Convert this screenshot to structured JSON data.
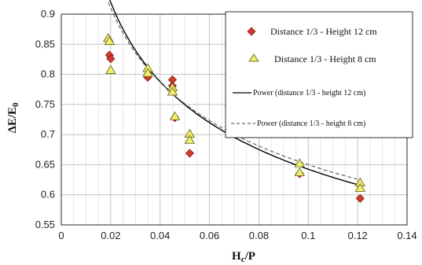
{
  "chart_data": {
    "type": "scatter",
    "xlabel_main": "H",
    "xlabel_sub": "c",
    "xlabel_rest": "/P",
    "ylabel_main": "ΔE/E",
    "ylabel_sub": "0",
    "xlim": [
      0,
      0.14
    ],
    "ylim": [
      0.55,
      0.9
    ],
    "x_ticks": [
      0,
      0.02,
      0.04,
      0.06,
      0.08,
      0.1,
      0.12,
      0.14
    ],
    "x_tick_labels": [
      "0",
      "0.02",
      "0.04",
      "0.06",
      "0.08",
      "0.1",
      "0.12",
      "0.14"
    ],
    "y_ticks": [
      0.55,
      0.6,
      0.65,
      0.7,
      0.75,
      0.8,
      0.85,
      0.9
    ],
    "y_tick_labels": [
      "0.55",
      "0.6",
      "0.65",
      "0.7",
      "0.75",
      "0.8",
      "0.85",
      "0.9"
    ],
    "x_minor_step": 0.005,
    "grid": "vertical minor and major, horizontal major",
    "legend_position": "top-right",
    "series": [
      {
        "name": "Distance 1/3 - Height 12 cm",
        "marker": "diamond",
        "color": "#d63a2f",
        "stroke": "#7a1a14",
        "points": [
          [
            0.019,
            0.857
          ],
          [
            0.0195,
            0.832
          ],
          [
            0.02,
            0.826
          ],
          [
            0.035,
            0.795
          ],
          [
            0.045,
            0.791
          ],
          [
            0.045,
            0.781
          ],
          [
            0.046,
            0.728
          ],
          [
            0.052,
            0.669
          ],
          [
            0.0965,
            0.635
          ],
          [
            0.121,
            0.594
          ]
        ]
      },
      {
        "name": "Distance 1/3 - Height 8 cm",
        "marker": "triangle",
        "color": "#f2ee6a",
        "stroke": "#5a5a1a",
        "points": [
          [
            0.019,
            0.861
          ],
          [
            0.0195,
            0.856
          ],
          [
            0.02,
            0.808
          ],
          [
            0.035,
            0.811
          ],
          [
            0.035,
            0.803
          ],
          [
            0.045,
            0.779
          ],
          [
            0.045,
            0.772
          ],
          [
            0.046,
            0.731
          ],
          [
            0.052,
            0.702
          ],
          [
            0.052,
            0.692
          ],
          [
            0.0965,
            0.653
          ],
          [
            0.0965,
            0.638
          ],
          [
            0.121,
            0.621
          ],
          [
            0.121,
            0.612
          ]
        ]
      },
      {
        "name": "Power (distance 1/3 - height 12 cm)",
        "line": "solid",
        "color": "#000000",
        "power_a": 0.3845,
        "power_b": -0.2229,
        "x_range": [
          0.019,
          0.121
        ]
      },
      {
        "name": "Power (distance 1/3 - height 8 cm)",
        "line": "dashed",
        "color": "#666666",
        "power_a": 0.4018,
        "power_b": -0.2089,
        "x_range": [
          0.019,
          0.121
        ]
      }
    ]
  }
}
